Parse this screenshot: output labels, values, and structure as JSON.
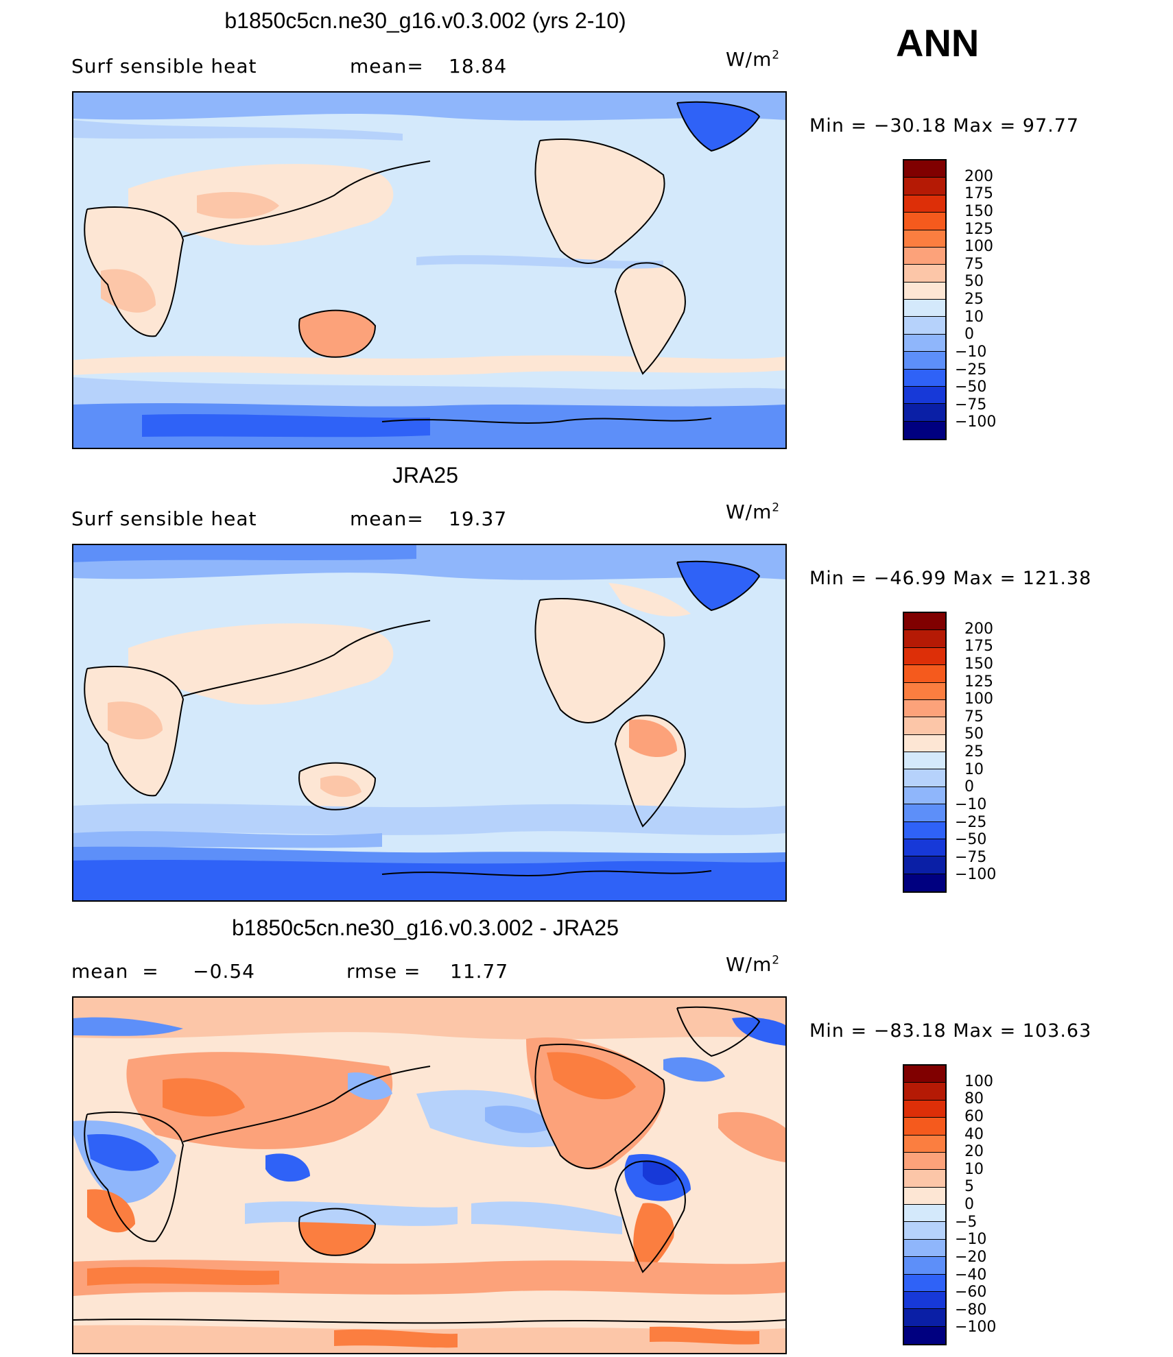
{
  "season": "ANN",
  "units_base": "W/m",
  "units_exp": "2",
  "panels": [
    {
      "title": "b1850c5cn.ne30_g16.v0.3.002 (yrs 2-10)",
      "left_label": "Surf  sensible  heat",
      "stat_label": "mean=",
      "stat_value": "18.84",
      "min_text": "Min  =  −30.18  Max  =    97.77",
      "levels": [
        "200",
        "175",
        "150",
        "125",
        "100",
        "75",
        "50",
        "25",
        "10",
        "0",
        "−10",
        "−25",
        "−50",
        "−75",
        "−100"
      ],
      "colors": [
        "#800000",
        "#b51a05",
        "#dd2f08",
        "#f55a1d",
        "#fb7e40",
        "#fca27a",
        "#fcc6a8",
        "#fde6d4",
        "#d4e9fb",
        "#b6d2fb",
        "#8fb6fb",
        "#5d8ff9",
        "#2f62f7",
        "#1739d8",
        "#0a1fa6",
        "#000080"
      ]
    },
    {
      "title": "JRA25",
      "left_label": "Surf  sensible  heat",
      "stat_label": "mean=",
      "stat_value": "19.37",
      "min_text": "Min  =  −46.99  Max  =  121.38",
      "levels": [
        "200",
        "175",
        "150",
        "125",
        "100",
        "75",
        "50",
        "25",
        "10",
        "0",
        "−10",
        "−25",
        "−50",
        "−75",
        "−100"
      ],
      "colors": [
        "#800000",
        "#b51a05",
        "#dd2f08",
        "#f55a1d",
        "#fb7e40",
        "#fca27a",
        "#fcc6a8",
        "#fde6d4",
        "#d4e9fb",
        "#b6d2fb",
        "#8fb6fb",
        "#5d8ff9",
        "#2f62f7",
        "#1739d8",
        "#0a1fa6",
        "#000080"
      ]
    },
    {
      "title": "b1850c5cn.ne30_g16.v0.3.002 - JRA25",
      "left_label": "mean  =     −0.54",
      "stat_label": "rmse  =",
      "stat_value": "11.77",
      "min_text": "Min  =  −83.18  Max  =  103.63",
      "levels": [
        "100",
        "80",
        "60",
        "40",
        "20",
        "10",
        "5",
        "0",
        "−5",
        "−10",
        "−20",
        "−40",
        "−60",
        "−80",
        "−100"
      ],
      "colors": [
        "#800000",
        "#b51a05",
        "#dd2f08",
        "#f55a1d",
        "#fb7e40",
        "#fca27a",
        "#fcc6a8",
        "#fde6d4",
        "#d4e9fb",
        "#b6d2fb",
        "#8fb6fb",
        "#5d8ff9",
        "#2f62f7",
        "#1739d8",
        "#0a1fa6",
        "#000080"
      ]
    }
  ]
}
